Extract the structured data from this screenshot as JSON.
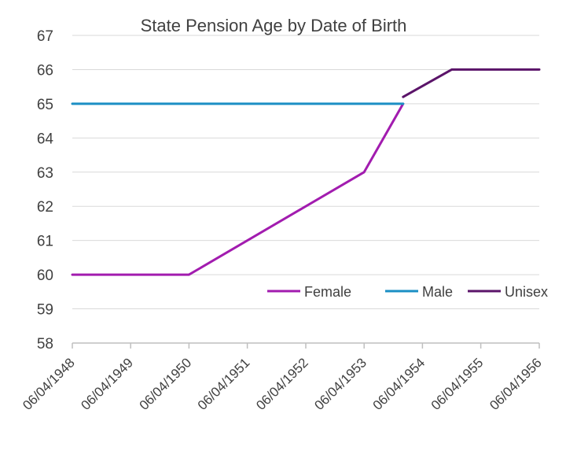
{
  "chart_data": {
    "type": "line",
    "title": "State Pension Age by Date of Birth",
    "xlabel": "",
    "ylabel": "",
    "ylim": [
      58,
      67
    ],
    "yticks": [
      58,
      59,
      60,
      61,
      62,
      63,
      64,
      65,
      66,
      67
    ],
    "xlim": [
      "06/04/1948",
      "06/04/1956"
    ],
    "xticks": [
      "06/04/1948",
      "06/04/1949",
      "06/04/1950",
      "06/04/1951",
      "06/04/1952",
      "06/04/1953",
      "06/04/1954",
      "06/04/1955",
      "06/04/1956"
    ],
    "grid": true,
    "legend": "right",
    "series": [
      {
        "name": "Female",
        "color": "#a21caf",
        "points": [
          {
            "x": "06/04/1948",
            "y": 60
          },
          {
            "x": "06/04/1950",
            "y": 60
          },
          {
            "x": "06/04/1953",
            "y": 63
          },
          {
            "x": "06/12/1953",
            "y": 65
          }
        ]
      },
      {
        "name": "Male",
        "color": "#1b8fc4",
        "points": [
          {
            "x": "06/04/1948",
            "y": 65
          },
          {
            "x": "06/12/1953",
            "y": 65
          }
        ]
      },
      {
        "name": "Unisex",
        "color": "#5b1469",
        "points": [
          {
            "x": "06/12/1953",
            "y": 65.2
          },
          {
            "x": "06/10/1954",
            "y": 66
          },
          {
            "x": "06/04/1956",
            "y": 66
          }
        ]
      }
    ]
  }
}
